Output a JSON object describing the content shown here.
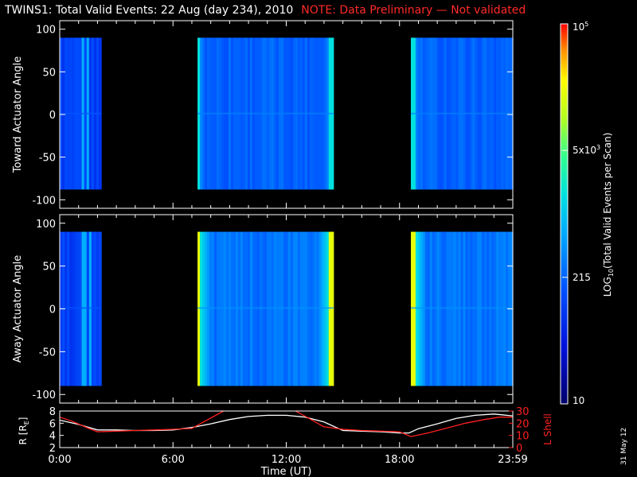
{
  "header": {
    "title": "TWINS1: Total Valid Events: 22 Aug (day 234), 2010",
    "note": "NOTE: Data Preliminary — Not validated"
  },
  "stamp": "31 May 12",
  "chart_data": [
    {
      "type": "heatmap",
      "ylabel": "Toward Actuator Angle",
      "ylim": [
        -110,
        110
      ],
      "yticks": [
        -100,
        -50,
        0,
        50,
        100
      ],
      "x_range_hours": [
        0,
        24
      ],
      "data_ylim": [
        -88,
        90
      ],
      "data_blocks": [
        {
          "start_hr": 0.0,
          "end_hr": 2.2,
          "level": "low",
          "bright_stripes_hr": [
            1.2,
            1.5
          ]
        },
        {
          "start_hr": 7.3,
          "end_hr": 14.5,
          "level": "mid",
          "edge_hr": [
            7.3,
            14.4
          ]
        },
        {
          "start_hr": 18.6,
          "end_hr": 24.0,
          "level": "mid",
          "edge_hr": [
            18.7
          ]
        }
      ]
    },
    {
      "type": "heatmap",
      "ylabel": "Away Actuator Angle",
      "ylim": [
        -110,
        110
      ],
      "yticks": [
        -100,
        -50,
        0,
        50,
        100
      ],
      "x_range_hours": [
        0,
        24
      ],
      "data_ylim": [
        -90,
        90
      ],
      "data_blocks": [
        {
          "start_hr": 0.0,
          "end_hr": 2.2,
          "level": "low",
          "bright_stripes_hr": [
            1.3,
            1.6
          ]
        },
        {
          "start_hr": 7.3,
          "end_hr": 14.5,
          "level": "high",
          "edge_hr": [
            7.3,
            14.4
          ]
        },
        {
          "start_hr": 18.6,
          "end_hr": 24.0,
          "level": "high",
          "edge_hr": [
            18.7
          ]
        }
      ]
    },
    {
      "type": "line",
      "xlabel": "Time (UT)",
      "ylabel": "R [R",
      "ylabel_sub": "E",
      "ylabel_end": "]",
      "y2label": "L Shell",
      "ylim": [
        2,
        8
      ],
      "y2lim": [
        0,
        30
      ],
      "yticks": [
        2,
        4,
        6,
        8
      ],
      "y2ticks": [
        0,
        10,
        20,
        30
      ],
      "xtick_labels": [
        "0:00",
        "6:00",
        "12:00",
        "18:00",
        "23:59"
      ],
      "xtick_hours": [
        0,
        6,
        12,
        18,
        24
      ],
      "series": [
        {
          "axis": "left",
          "color": "#ffffff",
          "x": [
            0,
            1,
            2,
            3,
            4,
            5,
            6,
            7,
            8,
            9,
            10,
            11,
            12,
            13,
            14,
            15,
            16,
            17,
            18,
            18.5,
            19,
            20,
            21,
            22,
            23,
            24
          ],
          "y": [
            6.5,
            5.8,
            4.9,
            4.9,
            4.8,
            4.8,
            4.9,
            5.3,
            5.9,
            6.6,
            7.1,
            7.3,
            7.3,
            7.0,
            6.2,
            4.8,
            4.7,
            4.6,
            4.4,
            4.4,
            5.1,
            5.9,
            6.8,
            7.3,
            7.5,
            7.2
          ]
        },
        {
          "axis": "right",
          "color": "#ff2020",
          "x": [
            0,
            0.6,
            1.5,
            2,
            3,
            4,
            5,
            6,
            7,
            7.5,
            8.8,
            9.0,
            11.8,
            12.5,
            14.0,
            15,
            16,
            17,
            18,
            18.6,
            19.5,
            20.5,
            21.5,
            22.5,
            23.3,
            24
          ],
          "y": [
            25,
            22,
            16,
            13,
            13.5,
            14,
            14.5,
            15,
            15.7,
            20,
            31,
            31,
            31,
            30,
            17,
            15,
            14,
            13.5,
            13,
            9,
            12,
            16,
            20,
            23,
            25,
            25
          ]
        }
      ]
    }
  ],
  "colorbar": {
    "label": "LOG",
    "label_sub": "10",
    "label_rest": "(Total Valid  Events per Scan)",
    "ticks": [
      {
        "label": "10",
        "frac": 0.0
      },
      {
        "label": "215",
        "frac": 0.333
      },
      {
        "label": "5x10",
        "sup": "3",
        "frac": 0.667
      },
      {
        "label": "10",
        "sup": "5",
        "frac": 1.0
      }
    ]
  }
}
